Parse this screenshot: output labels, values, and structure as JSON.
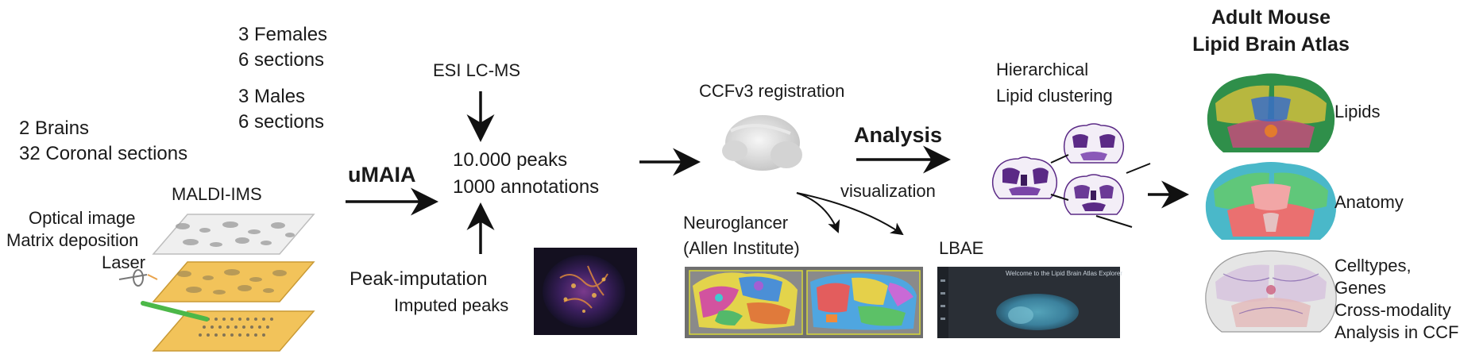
{
  "input": {
    "brains": "2 Brains",
    "sections": "32 Coronal sections",
    "females_1": "3 Females",
    "females_2": "6 sections",
    "males_1": "3 Males",
    "males_2": "6 sections"
  },
  "maldi": {
    "title": "MALDI-IMS",
    "optical": "Optical image",
    "matrix": "Matrix deposition",
    "laser": "Laser"
  },
  "umaia": "uMAIA",
  "esi": "ESI LC-MS",
  "peaks": {
    "line1": "10.000 peaks",
    "line2": "1000 annotations"
  },
  "imputation": {
    "title": "Peak-imputation",
    "sub": "Imputed peaks"
  },
  "ccf": "CCFv3 registration",
  "analysis": "Analysis",
  "visualization": "visualization",
  "neuroglancer": {
    "line1": "Neuroglancer",
    "line2": "(Allen Institute)"
  },
  "lbae": {
    "label": "LBAE",
    "screen_title": "Welcome to the Lipid Brain Atlas Explorer"
  },
  "clustering": {
    "line1": "Hierarchical",
    "line2": "Lipid clustering"
  },
  "atlas": {
    "title1": "Adult Mouse",
    "title2": "Lipid Brain Atlas",
    "lipids": "Lipids",
    "anatomy": "Anatomy",
    "ct1": "Celltypes,",
    "ct2": "Genes",
    "ct3": "Cross-modality",
    "ct4": "Analysis in CCF"
  },
  "colors": {
    "arrow": "#111111",
    "slide_gray": "#eeeeee",
    "slide_yellow": "#f2c35a",
    "laser": "#4cb848",
    "purple": "#5b2a86",
    "screen_bg": "#2a2f36"
  }
}
